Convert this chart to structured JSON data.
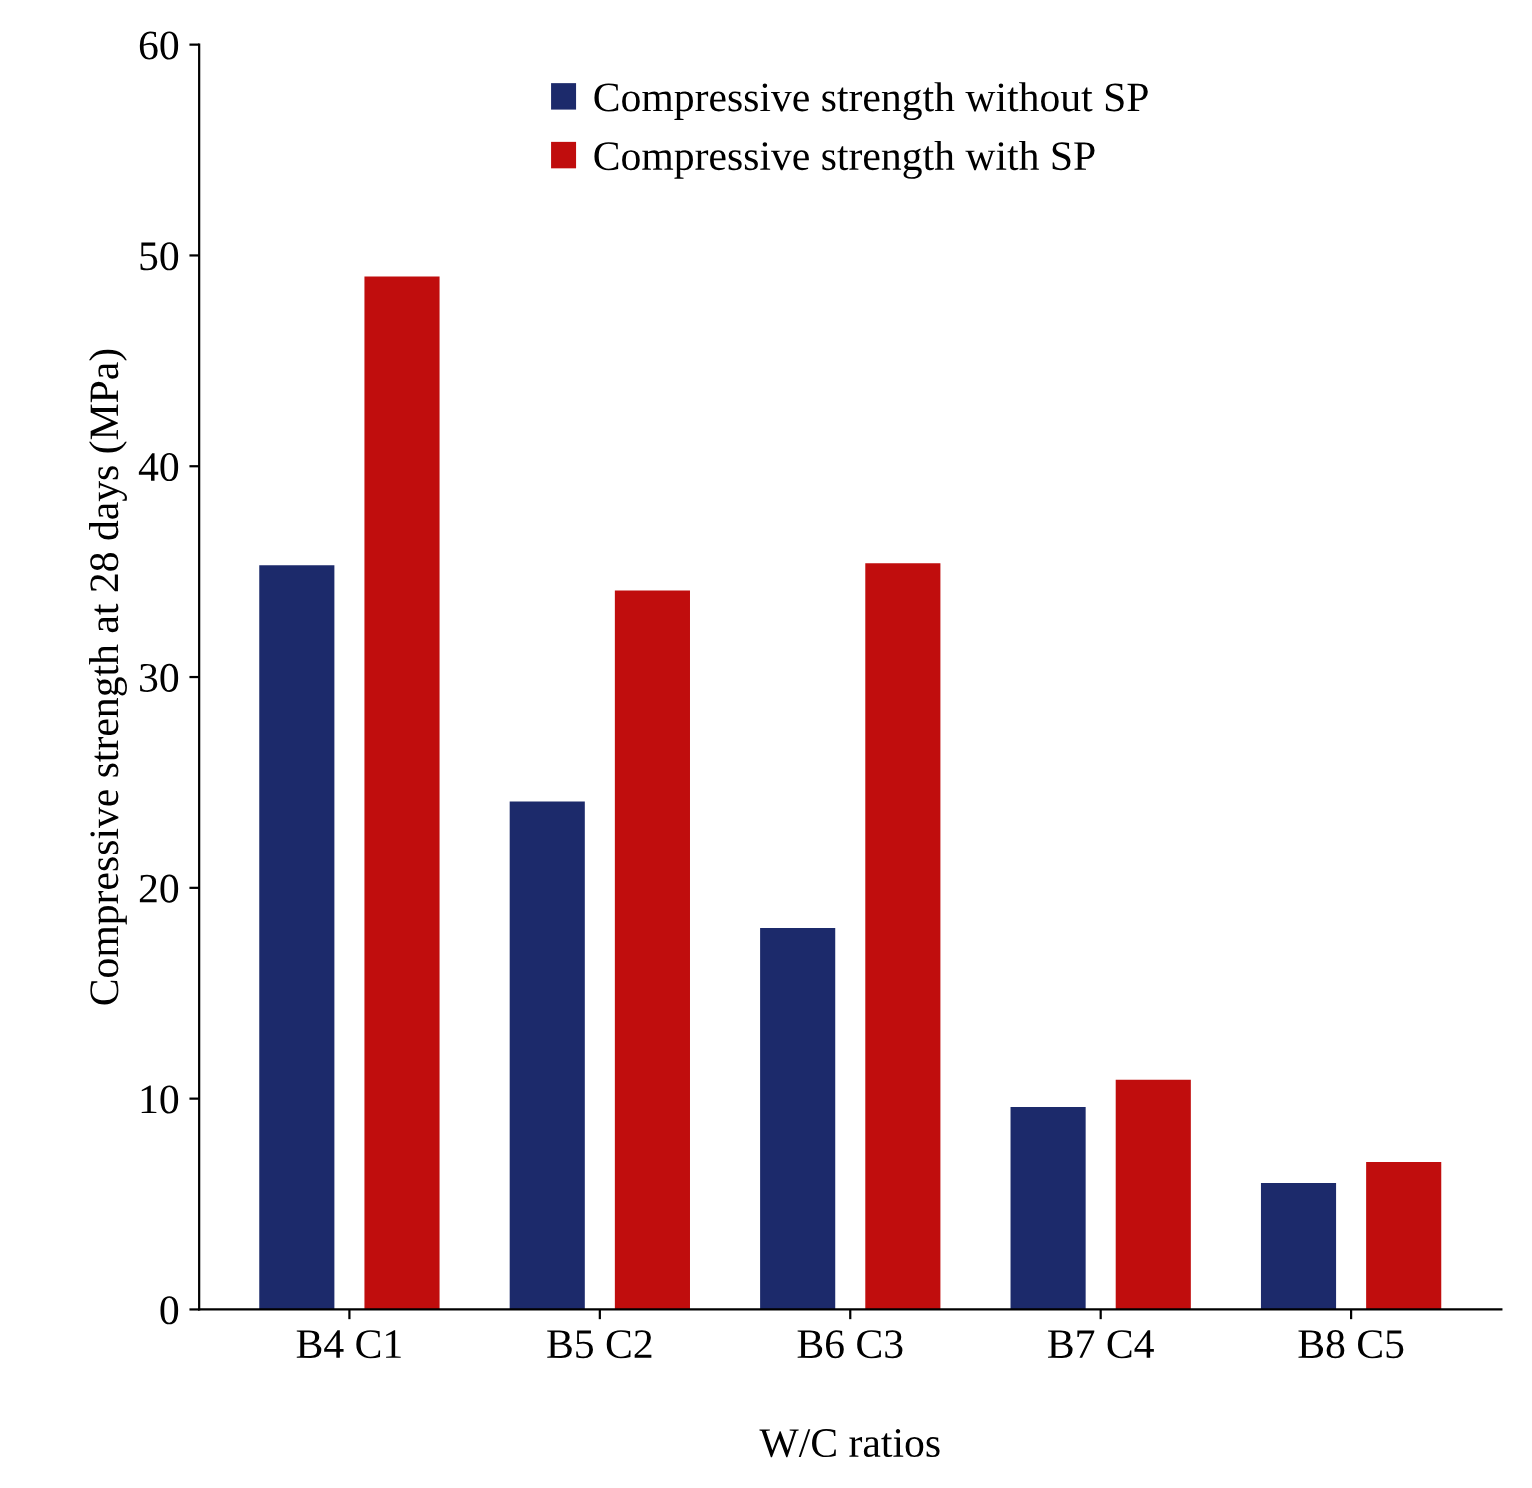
{
  "chart_data": {
    "type": "bar",
    "xlabel": "W/C ratios",
    "ylabel": "Compressive strength at 28 days (MPa)",
    "categories": [
      "B4 C1",
      "B5 C2",
      "B6 C3",
      "B7 C4",
      "B8 C5"
    ],
    "series": [
      {
        "name": "Compressive strength without SP",
        "color": "#1c2a6b",
        "values": [
          35.3,
          24.1,
          18.1,
          9.6,
          6.0
        ]
      },
      {
        "name": "Compressive strength with SP",
        "color": "#c00d0d",
        "values": [
          49.0,
          34.1,
          35.4,
          10.9,
          7.0
        ]
      }
    ],
    "ylim": [
      0,
      60
    ],
    "yticks": [
      0,
      10,
      20,
      30,
      40,
      50,
      60
    ],
    "grid": false,
    "legend": "top"
  }
}
